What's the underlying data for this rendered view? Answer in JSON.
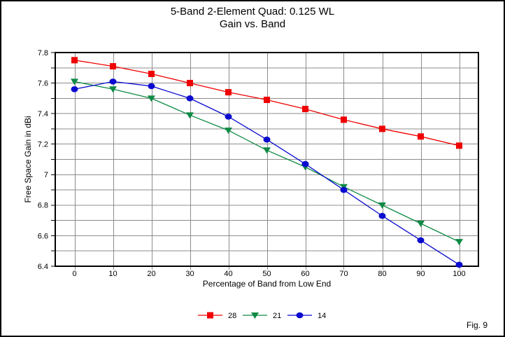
{
  "window": {
    "background": "#ffffff",
    "border_color": "#000000"
  },
  "figure": {
    "caption": "Fig. 9"
  },
  "chart_data": {
    "type": "line",
    "title": "5-Band 2-Element Quad: 0.125 WL",
    "subtitle": "Gain vs. Band",
    "xlabel": "Percentage of Band from Low End",
    "ylabel": "Free Space Gain in dBi",
    "x": [
      0,
      10,
      20,
      30,
      40,
      50,
      60,
      70,
      80,
      90,
      100
    ],
    "x_tick_labels": [
      "0",
      "10",
      "20",
      "30",
      "40",
      "50",
      "60",
      "70",
      "80",
      "90",
      "100"
    ],
    "y_tick_labels": [
      "7.8",
      "7.6",
      "7.4",
      "7.2",
      "7",
      "6.8",
      "6.6",
      "6.4"
    ],
    "xlim": [
      -5,
      105
    ],
    "ylim": [
      6.4,
      7.8
    ],
    "y_major_step": 0.2,
    "y_grid_step": 0.1,
    "x_grid_step": 10,
    "grid": true,
    "grid_color": "#8c8c8c",
    "axis_color": "#000000",
    "legend_position": "bottom-center",
    "series": [
      {
        "name": "28",
        "color": "#f00000",
        "marker": "square",
        "values": [
          7.75,
          7.71,
          7.66,
          7.6,
          7.54,
          7.49,
          7.43,
          7.36,
          7.3,
          7.25,
          7.19
        ]
      },
      {
        "name": "21",
        "color": "#0d8a44",
        "marker": "triangle-down",
        "values": [
          7.61,
          7.56,
          7.5,
          7.39,
          7.29,
          7.16,
          7.05,
          6.92,
          6.8,
          6.68,
          6.56
        ]
      },
      {
        "name": "14",
        "color": "#0b0bd0",
        "marker": "circle",
        "values": [
          7.56,
          7.61,
          7.58,
          7.5,
          7.38,
          7.23,
          7.07,
          6.9,
          6.73,
          6.57,
          6.41
        ]
      }
    ]
  }
}
